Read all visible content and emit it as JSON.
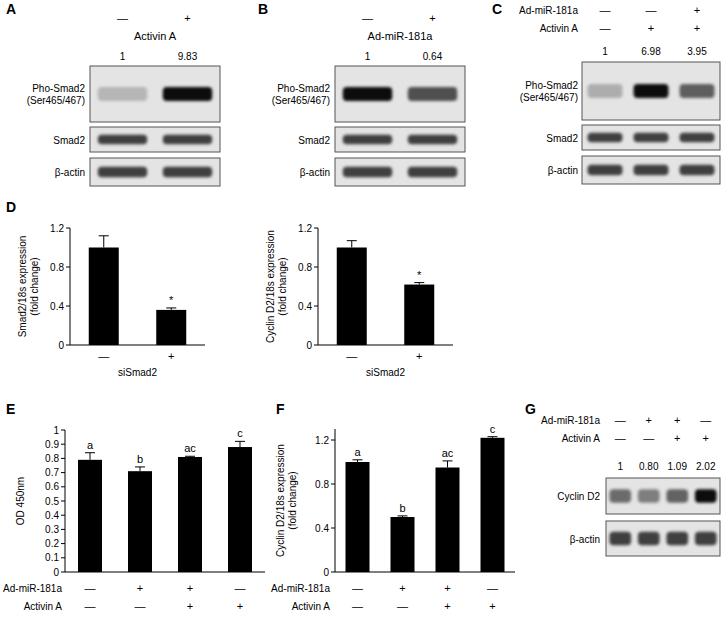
{
  "blots": [
    {
      "label": "A",
      "conditions": [
        {
          "name": "Activin A",
          "marks": [
            "—",
            "+"
          ]
        }
      ],
      "quantification": [
        1,
        9.83
      ],
      "rows": [
        [
          "Pho-Smad2",
          "(Ser465/467)"
        ],
        [
          "Smad2"
        ],
        [
          "β-actin"
        ]
      ]
    },
    {
      "label": "B",
      "conditions": [
        {
          "name": "Ad-miR-181a",
          "marks": [
            "—",
            "+"
          ]
        }
      ],
      "quantification": [
        1,
        0.64
      ],
      "rows": [
        [
          "Pho-Smad2",
          "(Ser465/467)"
        ],
        [
          "Smad2"
        ],
        [
          "β-actin"
        ]
      ]
    },
    {
      "label": "C",
      "conditions": [
        {
          "name": "Ad-miR-181a",
          "marks": [
            "—",
            "—",
            "+"
          ]
        },
        {
          "name": "Activin A",
          "marks": [
            "—",
            "+",
            "+"
          ]
        }
      ],
      "quantification": [
        1,
        6.98,
        3.95
      ],
      "rows": [
        [
          "Pho-Smad2",
          "(Ser465/467)"
        ],
        [
          "Smad2"
        ],
        [
          "β-actin"
        ]
      ]
    },
    {
      "label": "G",
      "conditions": [
        {
          "name": "Ad-miR-181a",
          "marks": [
            "—",
            "+",
            "+",
            "—"
          ]
        },
        {
          "name": "Activin A",
          "marks": [
            "—",
            "—",
            "+",
            "+"
          ]
        }
      ],
      "quantification": [
        1,
        0.8,
        1.09,
        2.02
      ],
      "quantification_labels": [
        "1",
        "0.80",
        "1.09",
        "2.02"
      ],
      "rows": [
        [
          "Cyclin D2"
        ],
        [
          "β-actin"
        ]
      ]
    }
  ],
  "chart_data": [
    {
      "type": "bar",
      "panel": "D",
      "ylabel": [
        "Smad2/18s expression",
        "(fold change)"
      ],
      "xlabel": "siSmad2",
      "categories": [
        "—",
        "+"
      ],
      "values": [
        1.0,
        0.36
      ],
      "errors": [
        0.12,
        0.02
      ],
      "letters": [
        null,
        "*"
      ],
      "color": "#000000",
      "ylim": [
        0,
        1.2
      ],
      "yticks": [
        0,
        0.4,
        0.8,
        1.2
      ]
    },
    {
      "type": "bar",
      "ylabel": [
        "Cyclin D2/18s expression",
        "(fold change)"
      ],
      "xlabel": "siSmad2",
      "categories": [
        "—",
        "+"
      ],
      "values": [
        1.0,
        0.62
      ],
      "errors": [
        0.07,
        0.02
      ],
      "letters": [
        null,
        "*"
      ],
      "color": "#000000",
      "ylim": [
        0,
        1.2
      ],
      "yticks": [
        0,
        0.4,
        0.8,
        1.2
      ]
    },
    {
      "type": "bar",
      "panel": "E",
      "ylabel": [
        "OD 450nm"
      ],
      "condition_rows": [
        {
          "name": "Ad-miR-181a",
          "marks": [
            "—",
            "+",
            "+",
            "—"
          ]
        },
        {
          "name": "Activin A",
          "marks": [
            "—",
            "—",
            "+",
            "+"
          ]
        }
      ],
      "values": [
        0.79,
        0.71,
        0.81,
        0.88
      ],
      "errors": [
        0.05,
        0.03,
        0.005,
        0.04
      ],
      "letters": [
        "a",
        "b",
        "ac",
        "c"
      ],
      "color": "#000000",
      "ylim": [
        0,
        1
      ],
      "yticks": [
        0,
        0.1,
        0.2,
        0.3,
        0.4,
        0.5,
        0.6,
        0.7,
        0.8,
        0.9,
        1
      ]
    },
    {
      "type": "bar",
      "panel": "F",
      "ylabel": [
        "Cyclin D2/18s expression",
        "(fold change)"
      ],
      "condition_rows": [
        {
          "name": "Ad-miR-181a",
          "marks": [
            "—",
            "+",
            "+",
            "—"
          ]
        },
        {
          "name": "Activin A",
          "marks": [
            "—",
            "—",
            "+",
            "+"
          ]
        }
      ],
      "values": [
        1.0,
        0.5,
        0.95,
        1.22
      ],
      "errors": [
        0.02,
        0.01,
        0.06,
        0.01
      ],
      "letters": [
        "a",
        "b",
        "ac",
        "c"
      ],
      "color": "#000000",
      "ylim": [
        0,
        1.3
      ],
      "yticks": [
        0,
        0.4,
        0.8,
        1.2
      ]
    }
  ]
}
